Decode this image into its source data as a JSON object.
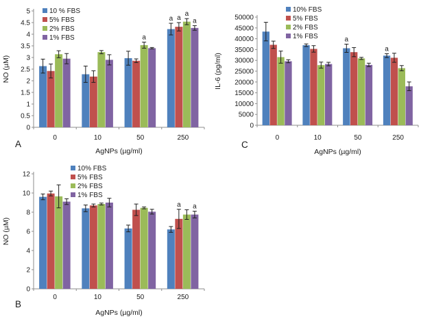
{
  "figure": {
    "description": "Three-panel bar figure: NO and IL-6 levels vs AgNPs dose at different FBS concentrations",
    "palette": {
      "blue": "#4F81BD",
      "red": "#C0504D",
      "green": "#9BBB59",
      "purple": "#8064A2"
    }
  },
  "chart_data": [
    {
      "type": "bar",
      "id": "A",
      "panel_label": "A",
      "title": "",
      "xlabel": "AgNPs (µg/ml)",
      "ylabel": "NO (µM)",
      "ylim": [
        0,
        5
      ],
      "ytick_step": 0.5,
      "grid": false,
      "legend_position": "top-left-inside",
      "categories": [
        "0",
        "10",
        "50",
        "250"
      ],
      "series": [
        {
          "name": "10 % FBS",
          "color": "#4F81BD",
          "values": [
            2.63,
            2.28,
            2.97,
            4.22
          ],
          "errors": [
            0.3,
            0.35,
            0.3,
            0.25
          ],
          "annotations": [
            null,
            null,
            null,
            "a"
          ]
        },
        {
          "name": "5% FBS",
          "color": "#C0504D",
          "values": [
            2.42,
            2.18,
            2.86,
            4.32
          ],
          "errors": [
            0.3,
            0.25,
            0.08,
            0.18
          ],
          "annotations": [
            null,
            null,
            null,
            "a"
          ]
        },
        {
          "name": "2% FBS",
          "color": "#9BBB59",
          "values": [
            3.14,
            3.23,
            3.53,
            4.54
          ],
          "errors": [
            0.15,
            0.07,
            0.13,
            0.13
          ],
          "annotations": [
            null,
            null,
            "a",
            "a"
          ]
        },
        {
          "name": "1% FBS",
          "color": "#8064A2",
          "values": [
            2.95,
            2.9,
            3.4,
            4.27
          ],
          "errors": [
            0.22,
            0.22,
            0.03,
            0.1
          ],
          "annotations": [
            null,
            null,
            null,
            "a"
          ]
        }
      ]
    },
    {
      "type": "bar",
      "id": "C",
      "panel_label": "C",
      "title": "",
      "xlabel": "AgNPs (µg/ml)",
      "ylabel": "IL-6 (pg/ml)",
      "ylim": [
        0,
        50000
      ],
      "ytick_step": 5000,
      "grid": false,
      "legend_position": "top-left-inside",
      "categories": [
        "0",
        "10",
        "50",
        "250"
      ],
      "series": [
        {
          "name": "10% FBS",
          "color": "#4F81BD",
          "values": [
            43300,
            37000,
            35600,
            32200
          ],
          "errors": [
            4300,
            600,
            1900,
            900
          ],
          "annotations": [
            null,
            null,
            "a",
            "a"
          ]
        },
        {
          "name": "5% FBS",
          "color": "#C0504D",
          "values": [
            37200,
            35300,
            33800,
            31200
          ],
          "errors": [
            1700,
            1500,
            2100,
            2100
          ],
          "annotations": [
            null,
            null,
            null,
            null
          ]
        },
        {
          "name": "2% FBS",
          "color": "#9BBB59",
          "values": [
            31500,
            27800,
            30900,
            26400
          ],
          "errors": [
            2800,
            1400,
            500,
            1200
          ],
          "annotations": [
            null,
            null,
            null,
            null
          ]
        },
        {
          "name": "1% FBS",
          "color": "#8064A2",
          "values": [
            29600,
            28300,
            27900,
            18000
          ],
          "errors": [
            700,
            800,
            800,
            2000
          ],
          "annotations": [
            null,
            null,
            null,
            null
          ]
        }
      ]
    },
    {
      "type": "bar",
      "id": "B",
      "panel_label": "B",
      "title": "",
      "xlabel": "AgNPs (µg/ml)",
      "ylabel": "NO (µM)",
      "ylim": [
        0,
        12
      ],
      "ytick_step": 2,
      "grid": false,
      "legend_position": "top-left-inside",
      "categories": [
        "0",
        "10",
        "50",
        "250"
      ],
      "series": [
        {
          "name": "10% FBS",
          "color": "#4F81BD",
          "values": [
            9.6,
            8.4,
            6.3,
            6.2
          ],
          "errors": [
            0.3,
            0.35,
            0.35,
            0.3
          ],
          "annotations": [
            null,
            null,
            null,
            null
          ]
        },
        {
          "name": "5% FBS",
          "color": "#C0504D",
          "values": [
            9.95,
            8.7,
            8.25,
            7.3
          ],
          "errors": [
            0.25,
            0.15,
            0.6,
            1.0
          ],
          "annotations": [
            null,
            null,
            null,
            "a"
          ]
        },
        {
          "name": "2% FBS",
          "color": "#9BBB59",
          "values": [
            9.65,
            8.85,
            8.45,
            7.75
          ],
          "errors": [
            1.2,
            0.1,
            0.1,
            0.5
          ],
          "annotations": [
            null,
            null,
            null,
            null
          ]
        },
        {
          "name": "1% FBS",
          "color": "#8064A2",
          "values": [
            9.1,
            9.0,
            8.05,
            7.75
          ],
          "errors": [
            0.3,
            0.45,
            0.25,
            0.35
          ],
          "annotations": [
            null,
            null,
            null,
            "a"
          ]
        }
      ]
    }
  ]
}
